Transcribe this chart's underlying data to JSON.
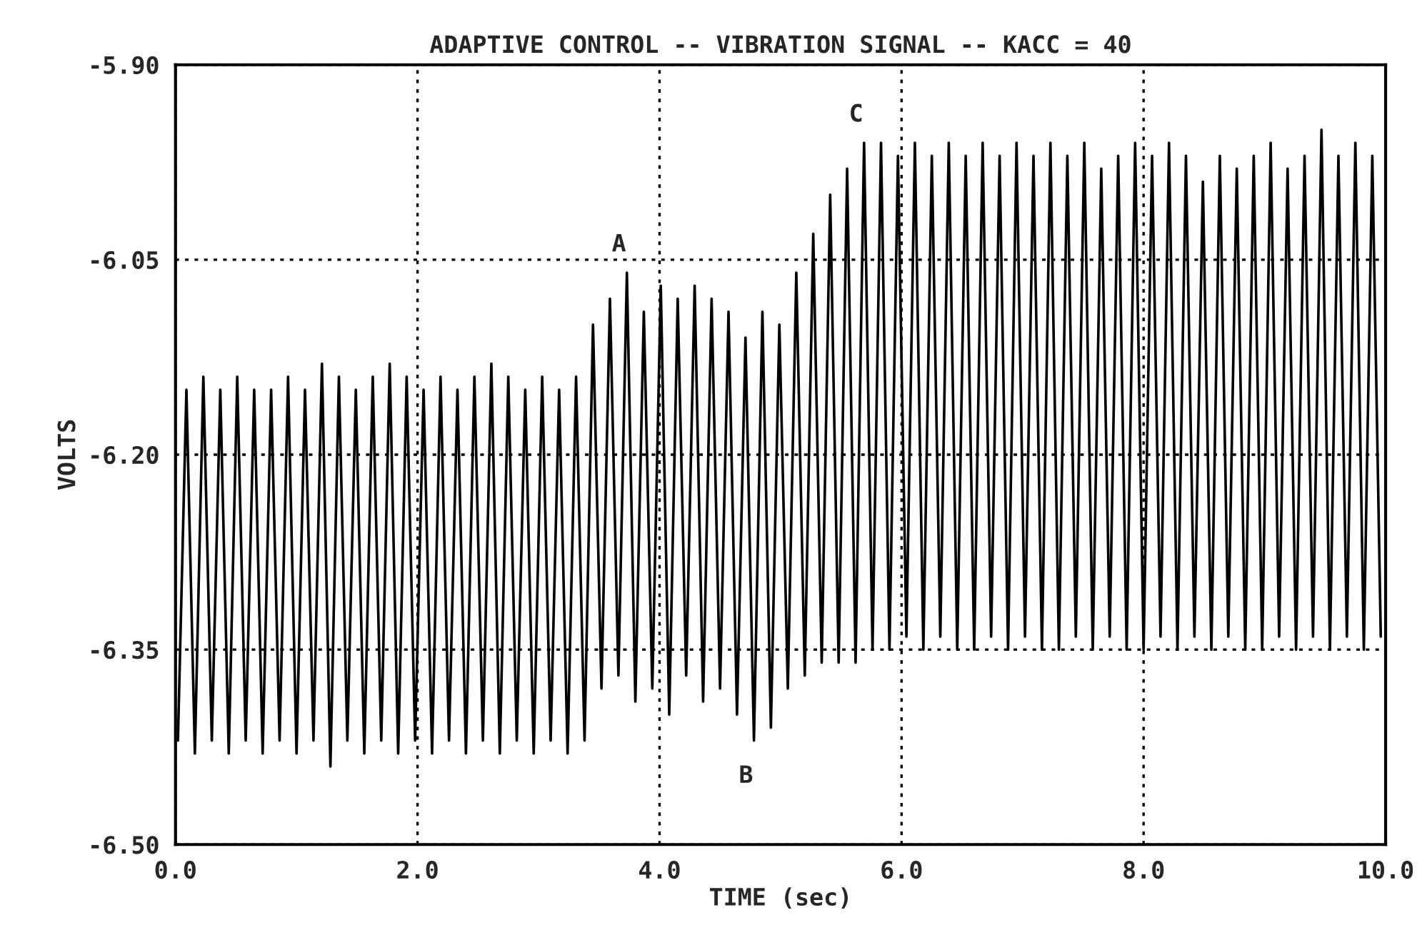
{
  "chart_data": {
    "type": "line",
    "title": "ADAPTIVE CONTROL -- VIBRATION SIGNAL -- KACC = 40",
    "xlabel": "TIME (sec)",
    "ylabel": "VOLTS",
    "xlim": [
      0,
      10
    ],
    "xticks": [
      {
        "value": 0,
        "label": "0.0"
      },
      {
        "value": 2,
        "label": "2.0"
      },
      {
        "value": 4,
        "label": "4.0"
      },
      {
        "value": 6,
        "label": "6.0"
      },
      {
        "value": 8,
        "label": "8.0"
      },
      {
        "value": 10,
        "label": "10.0"
      }
    ],
    "ylim": [
      -6.5,
      -5.9
    ],
    "yticks": [
      {
        "value": -6.5,
        "label": "-6.50"
      },
      {
        "value": -6.35,
        "label": "-6.35"
      },
      {
        "value": -6.2,
        "label": "-6.20"
      },
      {
        "value": -6.05,
        "label": "-6.05"
      },
      {
        "value": -5.9,
        "label": "-5.90"
      }
    ],
    "grid": true,
    "marker": "none",
    "line_style": "solid",
    "annotations": [
      {
        "text": "A",
        "x": 3.73,
        "y": -6.06
      },
      {
        "text": "B",
        "x": 4.78,
        "y": -6.42
      },
      {
        "text": "C",
        "x": 5.69,
        "y": -5.96
      }
    ],
    "series": [
      {
        "color": "#000000",
        "x": [
          0.02,
          0.09,
          0.16,
          0.23,
          0.3,
          0.37,
          0.44,
          0.51,
          0.58,
          0.65,
          0.72,
          0.79,
          0.86,
          0.93,
          1.0,
          1.07,
          1.14,
          1.21,
          1.28,
          1.35,
          1.42,
          1.49,
          1.56,
          1.63,
          1.7,
          1.77,
          1.84,
          1.91,
          1.98,
          2.05,
          2.12,
          2.19,
          2.26,
          2.33,
          2.4,
          2.47,
          2.54,
          2.61,
          2.68,
          2.75,
          2.82,
          2.89,
          2.96,
          3.03,
          3.1,
          3.17,
          3.24,
          3.31,
          3.38,
          3.45,
          3.52,
          3.59,
          3.66,
          3.73,
          3.8,
          3.87,
          3.94,
          4.01,
          4.08,
          4.15,
          4.22,
          4.29,
          4.36,
          4.43,
          4.5,
          4.57,
          4.64,
          4.71,
          4.78,
          4.85,
          4.92,
          4.99,
          5.06,
          5.13,
          5.2,
          5.27,
          5.34,
          5.41,
          5.48,
          5.55,
          5.62,
          5.69,
          5.76,
          5.83,
          5.9,
          5.97,
          6.04,
          6.11,
          6.18,
          6.25,
          6.32,
          6.39,
          6.46,
          6.53,
          6.6,
          6.67,
          6.74,
          6.81,
          6.88,
          6.95,
          7.02,
          7.09,
          7.16,
          7.23,
          7.3,
          7.37,
          7.44,
          7.51,
          7.58,
          7.65,
          7.72,
          7.79,
          7.86,
          7.93,
          8.0,
          8.07,
          8.14,
          8.21,
          8.28,
          8.35,
          8.42,
          8.49,
          8.56,
          8.63,
          8.7,
          8.77,
          8.84,
          8.91,
          8.98,
          9.05,
          9.12,
          9.19,
          9.26,
          9.33,
          9.4,
          9.47,
          9.54,
          9.61,
          9.68,
          9.75,
          9.82,
          9.89,
          9.96
        ],
        "values": [
          -6.42,
          -6.15,
          -6.43,
          -6.14,
          -6.42,
          -6.15,
          -6.43,
          -6.14,
          -6.42,
          -6.15,
          -6.43,
          -6.15,
          -6.42,
          -6.14,
          -6.43,
          -6.15,
          -6.42,
          -6.13,
          -6.44,
          -6.14,
          -6.42,
          -6.15,
          -6.43,
          -6.14,
          -6.42,
          -6.13,
          -6.43,
          -6.14,
          -6.42,
          -6.15,
          -6.43,
          -6.14,
          -6.42,
          -6.15,
          -6.43,
          -6.14,
          -6.42,
          -6.13,
          -6.43,
          -6.14,
          -6.42,
          -6.15,
          -6.43,
          -6.14,
          -6.42,
          -6.15,
          -6.43,
          -6.14,
          -6.42,
          -6.1,
          -6.38,
          -6.08,
          -6.37,
          -6.06,
          -6.39,
          -6.09,
          -6.38,
          -6.07,
          -6.4,
          -6.08,
          -6.37,
          -6.07,
          -6.39,
          -6.08,
          -6.38,
          -6.09,
          -6.4,
          -6.11,
          -6.42,
          -6.09,
          -6.41,
          -6.1,
          -6.38,
          -6.06,
          -6.37,
          -6.03,
          -6.36,
          -6.0,
          -6.36,
          -5.98,
          -6.36,
          -5.96,
          -6.35,
          -5.96,
          -6.35,
          -5.97,
          -6.34,
          -5.96,
          -6.35,
          -5.97,
          -6.34,
          -5.96,
          -6.35,
          -5.97,
          -6.35,
          -5.96,
          -6.34,
          -5.97,
          -6.35,
          -5.96,
          -6.34,
          -5.97,
          -6.35,
          -5.96,
          -6.35,
          -5.97,
          -6.34,
          -5.96,
          -6.35,
          -5.98,
          -6.34,
          -5.97,
          -6.35,
          -5.96,
          -6.35,
          -5.97,
          -6.34,
          -5.96,
          -6.35,
          -5.97,
          -6.34,
          -5.99,
          -6.35,
          -5.97,
          -6.34,
          -5.98,
          -6.35,
          -5.97,
          -6.35,
          -5.96,
          -6.34,
          -5.98,
          -6.35,
          -5.97,
          -6.34,
          -5.95,
          -6.35,
          -5.97,
          -6.34,
          -5.96,
          -6.35,
          -5.97,
          -6.34
        ]
      }
    ]
  }
}
